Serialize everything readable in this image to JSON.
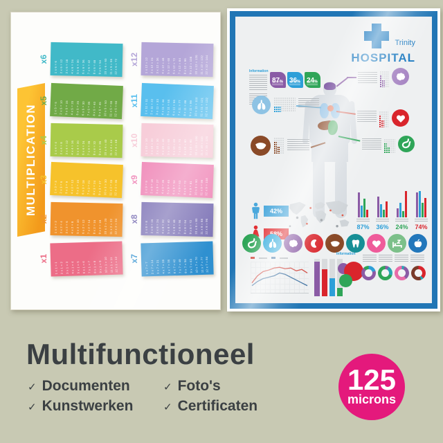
{
  "background": "#c8c9b3",
  "mult_poster": {
    "title": "MULTIPLICATION",
    "banner_colors": [
      "#fdc434",
      "#f39a1b"
    ],
    "tables": [
      {
        "label": "x6",
        "color": "#41b9c8",
        "facts": [
          "1 x 6 = 6",
          "2 x 6 = 12",
          "3 x 6 = 18",
          "4 x 6 = 24",
          "5 x 6 = 30",
          "6 x 6 = 36",
          "7 x 6 = 42",
          "8 x 6 = 48",
          "9 x 6 = 54",
          "10 x 6 = 60",
          "11 x 6 = 66",
          "12 x 6 = 72"
        ]
      },
      {
        "label": "x5",
        "color": "#71aa47",
        "facts": [
          "1 x 5 = 5",
          "2 x 5 = 10",
          "3 x 5 = 15",
          "4 x 5 = 20",
          "5 x 5 = 25",
          "6 x 5 = 30",
          "7 x 5 = 35",
          "8 x 5 = 40",
          "9 x 5 = 45",
          "10 x 5 = 50",
          "11 x 5 = 55",
          "12 x 5 = 60"
        ]
      },
      {
        "label": "x4",
        "color": "#a9cb4a",
        "facts": [
          "1 x 4 = 4",
          "2 x 4 = 8",
          "3 x 4 = 12",
          "4 x 4 = 16",
          "5 x 4 = 20",
          "6 x 4 = 24",
          "7 x 4 = 28",
          "8 x 4 = 32",
          "9 x 4 = 36",
          "10 x 4 = 40",
          "11 x 4 = 44",
          "12 x 4 = 48"
        ]
      },
      {
        "label": "x3",
        "color": "#f6c22b",
        "facts": [
          "1 x 3 = 3",
          "2 x 3 = 6",
          "3 x 3 = 9",
          "4 x 3 = 12",
          "5 x 3 = 15",
          "6 x 3 = 18",
          "7 x 3 = 21",
          "8 x 3 = 24",
          "9 x 3 = 27",
          "10 x 3 = 30",
          "11 x 3 = 33",
          "12 x 3 = 36"
        ]
      },
      {
        "label": "x2",
        "color": "#f0932d",
        "facts": [
          "1 x 2 = 2",
          "2 x 2 = 4",
          "3 x 2 = 6",
          "4 x 2 = 8",
          "5 x 2 = 10",
          "6 x 2 = 12",
          "7 x 2 = 14",
          "8 x 2 = 16",
          "9 x 2 = 18",
          "10 x 2 = 20",
          "11 x 2 = 22",
          "12 x 2 = 24"
        ]
      },
      {
        "label": "x1",
        "color": "#ec6d87",
        "facts": [
          "1 x 1 = 1",
          "2 x 1 = 2",
          "3 x 1 = 3",
          "4 x 1 = 4",
          "5 x 1 = 5",
          "6 x 1 = 6",
          "7 x 1 = 7",
          "8 x 1 = 8",
          "9 x 1 = 9",
          "10 x 1 = 10",
          "11 x 1 = 11",
          "12 x 1 = 12"
        ]
      },
      {
        "label": "x12",
        "color": "#b4a6d8",
        "facts": [
          "1 x 12 = 12",
          "2 x 12 = 24",
          "3 x 12 = 36",
          "4 x 12 = 48",
          "5 x 12 = 60",
          "6 x 12 = 72",
          "7 x 12 = 84",
          "8 x 12 = 96",
          "9 x 12 = 108",
          "10 x 12 = 120",
          "11 x 12 = 132",
          "12 x 12 = 144"
        ]
      },
      {
        "label": "x11",
        "color": "#59bfee",
        "facts": [
          "1 x 11 = 11",
          "2 x 11 = 22",
          "3 x 11 = 33",
          "4 x 11 = 44",
          "5 x 11 = 55",
          "6 x 11 = 66",
          "7 x 11 = 77",
          "8 x 11 = 88",
          "9 x 11 = 99",
          "10 x 11 = 110",
          "11 x 11 = 121",
          "12 x 11 = 132"
        ]
      },
      {
        "label": "x10",
        "color": "#f7cdd9",
        "facts": [
          "1 x 10 = 10",
          "2 x 10 = 20",
          "3 x 10 = 30",
          "4 x 10 = 40",
          "5 x 10 = 50",
          "6 x 10 = 60",
          "7 x 10 = 70",
          "8 x 10 = 80",
          "9 x 10 = 90",
          "10 x 10 = 100",
          "11 x 10 = 110",
          "12 x 10 = 120"
        ]
      },
      {
        "label": "x9",
        "color": "#f08cba",
        "facts": [
          "1 x 9 = 9",
          "2 x 9 = 18",
          "3 x 9 = 27",
          "4 x 9 = 36",
          "5 x 9 = 45",
          "6 x 9 = 54",
          "7 x 9 = 63",
          "8 x 9 = 72",
          "9 x 9 = 81",
          "10 x 9 = 90",
          "11 x 9 = 99",
          "12 x 9 = 108"
        ]
      },
      {
        "label": "x8",
        "color": "#8177b8",
        "facts": [
          "1 x 8 = 8",
          "2 x 8 = 16",
          "3 x 8 = 24",
          "4 x 8 = 32",
          "5 x 8 = 40",
          "6 x 8 = 48",
          "7 x 8 = 56",
          "8 x 8 = 64",
          "9 x 8 = 72",
          "10 x 8 = 80",
          "11 x 8 = 88",
          "12 x 8 = 96"
        ]
      },
      {
        "label": "x7",
        "color": "#2f90d0",
        "facts": [
          "1 x 7 = 7",
          "2 x 7 = 14",
          "3 x 7 = 21",
          "4 x 7 = 28",
          "5 x 7 = 35",
          "6 x 7 = 42",
          "7 x 7 = 49",
          "8 x 7 = 56",
          "9 x 7 = 63",
          "10 x 7 = 70",
          "11 x 7 = 77",
          "12 x 7 = 84"
        ]
      }
    ]
  },
  "hospital_poster": {
    "frame_color": "#2176b5",
    "brand": {
      "top": "Trinity",
      "bottom": "HOSPITAL",
      "color": "#1a79c0"
    },
    "info_heading": "Information",
    "info2_heading": "Information",
    "badges": [
      {
        "label": "87",
        "unit": "%",
        "color": "#8a5ba5"
      },
      {
        "label": "36",
        "unit": "%",
        "color": "#2d9fd8"
      },
      {
        "label": "24",
        "unit": "%",
        "color": "#2fa558"
      }
    ],
    "gender_stats": [
      {
        "figure": "male",
        "label": "42%",
        "color": "#4aa8dc"
      },
      {
        "figure": "female",
        "label": "58%",
        "color": "#e02428"
      }
    ],
    "bar_colors": [
      "#8a5ba5",
      "#2d9fd8",
      "#2fa558",
      "#d9252c"
    ],
    "bar_stats": [
      {
        "label": "87%",
        "color": "#2d9fd8",
        "heights": [
          0.95,
          0.45,
          0.7,
          0.3
        ]
      },
      {
        "label": "36%",
        "color": "#2d9fd8",
        "heights": [
          0.8,
          0.5,
          0.3,
          0.6
        ]
      },
      {
        "label": "24%",
        "color": "#2fa558",
        "heights": [
          0.35,
          0.55,
          0.25,
          1.0
        ]
      },
      {
        "label": "74%",
        "color": "#d9252c",
        "heights": [
          0.95,
          1.0,
          0.55,
          0.75
        ]
      }
    ],
    "organ_callouts": [
      {
        "organ": "brain",
        "color": "#a887c4"
      },
      {
        "organ": "lungs",
        "color": "#8ec3e4"
      },
      {
        "organ": "heart",
        "color": "#d9252c"
      },
      {
        "organ": "liver",
        "color": "#8a4a28"
      },
      {
        "organ": "stomach",
        "color": "#2fa558"
      }
    ],
    "organ_icons": [
      {
        "name": "stomach",
        "color": "#2fa558"
      },
      {
        "name": "lungs",
        "color": "#29a8dc"
      },
      {
        "name": "brain",
        "color": "#8a5ba5"
      },
      {
        "name": "kidney",
        "color": "#d9252c"
      },
      {
        "name": "liver",
        "color": "#8a4a28"
      },
      {
        "name": "tooth",
        "color": "#178f96"
      },
      {
        "name": "heart",
        "color": "#ef5b9a"
      },
      {
        "name": "sleep",
        "color": "#7cc08a"
      },
      {
        "name": "apple",
        "color": "#2277bb"
      }
    ],
    "line_chart": {
      "series": [
        {
          "color": "#d0453c",
          "points": [
            [
              2,
              30
            ],
            [
              10,
              20
            ],
            [
              18,
              14
            ],
            [
              26,
              12
            ],
            [
              34,
              9
            ],
            [
              42,
              8
            ],
            [
              50,
              10
            ],
            [
              58,
              9
            ],
            [
              66,
              13
            ],
            [
              74,
              11
            ],
            [
              82,
              16
            ]
          ]
        },
        {
          "color": "#3b6fa0",
          "points": [
            [
              2,
              34
            ],
            [
              10,
              28
            ],
            [
              18,
              24
            ],
            [
              26,
              22
            ],
            [
              34,
              20
            ],
            [
              42,
              16
            ],
            [
              50,
              18
            ],
            [
              58,
              22
            ],
            [
              66,
              26
            ],
            [
              74,
              30
            ],
            [
              82,
              34
            ]
          ]
        }
      ]
    },
    "bar_tracks": [
      {
        "color": "#8a5ba5",
        "fill": 0.92
      },
      {
        "color": "#d9252c",
        "fill": 0.72
      },
      {
        "color": "#2d9fd8",
        "fill": 0.48
      },
      {
        "color": "#2fa558",
        "fill": 0.22
      }
    ],
    "donuts": [
      [
        [
          "#2d9fd8",
          20
        ],
        [
          "#8a5ba5",
          88
        ],
        [
          "#2fa558",
          100
        ]
      ],
      [
        [
          "#8a5ba5",
          8
        ],
        [
          "#2aa5b5",
          30
        ],
        [
          "#2fa558",
          100
        ]
      ],
      [
        [
          "#2aa5b5",
          6
        ],
        [
          "#8a5ba5",
          40
        ],
        [
          "#e86ca8",
          100
        ]
      ],
      [
        [
          "#d9252c",
          38
        ],
        [
          "#2aa5b5",
          44
        ],
        [
          "#7a3b2a",
          100
        ]
      ]
    ]
  },
  "caption": {
    "title": "Multifunctioneel",
    "check": "✓",
    "col1": [
      "Documenten",
      "Kunstwerken"
    ],
    "col2": [
      "Foto's",
      "Certificaten"
    ]
  },
  "badge": {
    "value": "125",
    "unit": "microns",
    "color": "#e4197c"
  }
}
